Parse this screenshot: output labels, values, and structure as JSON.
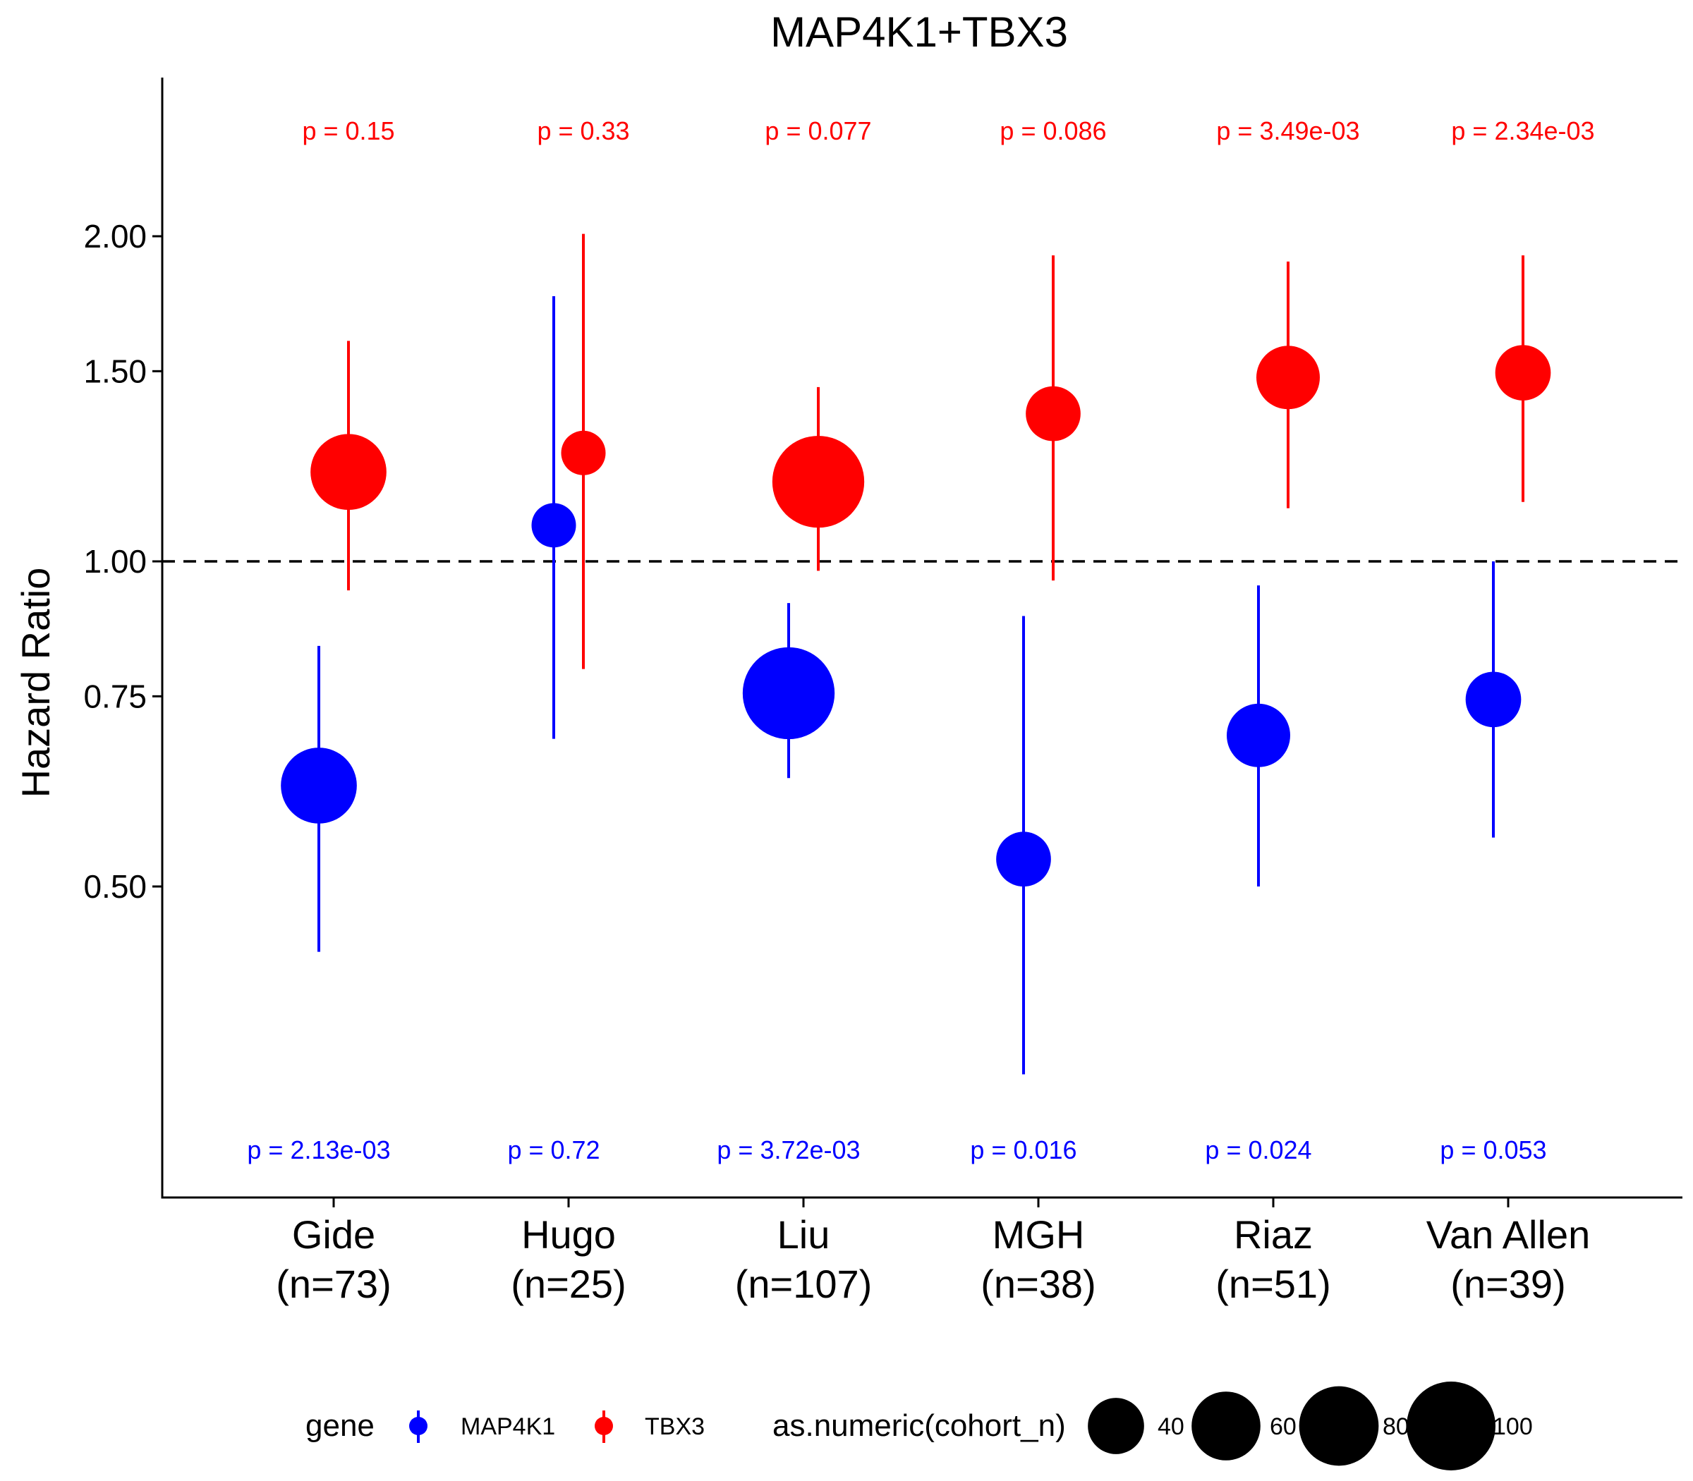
{
  "chart_data": {
    "type": "scatter",
    "title": "MAP4K1+TBX3",
    "ylabel": "Hazard Ratio",
    "xlabel": "",
    "y_scale": "log",
    "ylim": [
      0.3,
      2.65
    ],
    "yticks": [
      0.5,
      0.75,
      1.0,
      1.5,
      2.0
    ],
    "ytick_labels": [
      "0.50",
      "0.75",
      "1.00",
      "1.50",
      "2.00"
    ],
    "reference_line": 1.0,
    "categories": [
      {
        "name": "Gide",
        "n_label": "(n=73)"
      },
      {
        "name": "Hugo",
        "n_label": "(n=25)"
      },
      {
        "name": "Liu",
        "n_label": "(n=107)"
      },
      {
        "name": "MGH",
        "n_label": "(n=38)"
      },
      {
        "name": "Riaz",
        "n_label": "(n=51)"
      },
      {
        "name": "Van Allen",
        "n_label": "(n=39)"
      }
    ],
    "cohort_n": [
      73,
      25,
      107,
      38,
      51,
      39
    ],
    "series": [
      {
        "name": "MAP4K1",
        "color": "#0000FF",
        "hr": [
          0.62,
          1.08,
          0.755,
          0.53,
          0.69,
          0.745
        ],
        "lower": [
          0.435,
          0.685,
          0.63,
          0.335,
          0.5,
          0.555
        ],
        "upper": [
          0.835,
          1.76,
          0.915,
          0.89,
          0.95,
          1.0
        ],
        "p_labels": [
          "p = 2.13e-03",
          "p = 0.72",
          "p = 3.72e-03",
          "p = 0.016",
          "p = 0.024",
          "p = 0.053"
        ]
      },
      {
        "name": "TBX3",
        "color": "#FF0000",
        "hr": [
          1.21,
          1.26,
          1.185,
          1.37,
          1.48,
          1.495
        ],
        "lower": [
          0.94,
          0.795,
          0.98,
          0.96,
          1.12,
          1.135
        ],
        "upper": [
          1.6,
          2.01,
          1.45,
          1.92,
          1.895,
          1.92
        ],
        "p_labels": [
          "p = 0.15",
          "p = 0.33",
          "p = 0.077",
          "p = 0.086",
          "p = 3.49e-03",
          "p = 2.34e-03"
        ]
      }
    ],
    "legend": {
      "position": "bottom",
      "gene_title": "gene",
      "size_title": "as.numeric(cohort_n)",
      "size_values": [
        40,
        60,
        80,
        100
      ],
      "size_labels": [
        "40",
        "60",
        "80",
        "100"
      ]
    }
  }
}
